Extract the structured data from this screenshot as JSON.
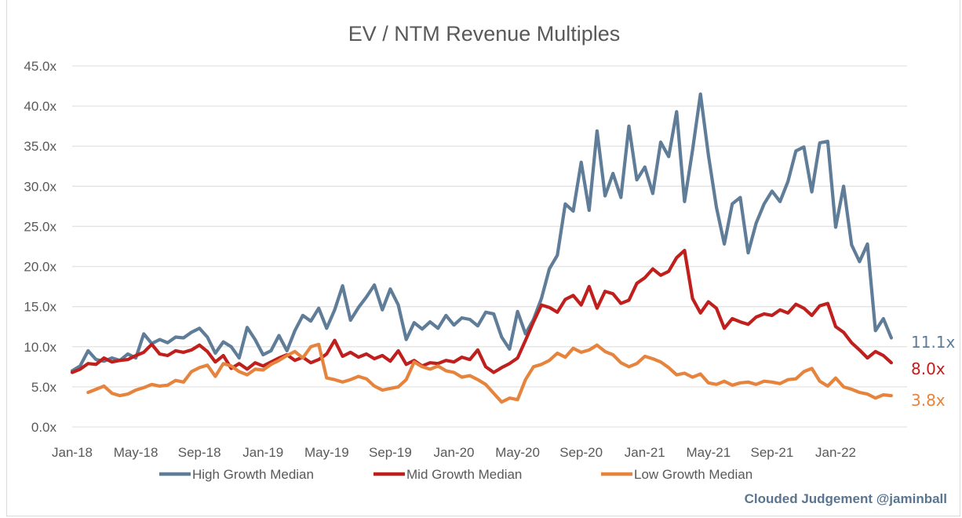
{
  "chart_data": {
    "type": "line",
    "title": "EV / NTM Revenue Multiples",
    "xlabel": "",
    "ylabel": "",
    "ylim": [
      0,
      45
    ],
    "y_ticks": [
      "0.0x",
      "5.0x",
      "10.0x",
      "15.0x",
      "20.0x",
      "25.0x",
      "30.0x",
      "35.0x",
      "40.0x",
      "45.0x"
    ],
    "y_tick_values": [
      0,
      5,
      10,
      15,
      20,
      25,
      30,
      35,
      40,
      45
    ],
    "x_ticks": [
      "Jan-18",
      "May-18",
      "Sep-18",
      "Jan-19",
      "May-19",
      "Sep-19",
      "Jan-20",
      "May-20",
      "Sep-20",
      "Jan-21",
      "May-21",
      "Sep-21",
      "Jan-22"
    ],
    "x_tick_months": [
      0,
      4,
      8,
      12,
      16,
      20,
      24,
      28,
      32,
      36,
      40,
      44,
      48
    ],
    "x_range_months": [
      0,
      51.6
    ],
    "grid": true,
    "legend_position": "bottom",
    "series": [
      {
        "name": "High Growth Median",
        "color": "#5f7d98",
        "end_label": "11.1x",
        "months": [
          0,
          0.5,
          1,
          1.5,
          2,
          2.5,
          3,
          3.5,
          4,
          4.5,
          5,
          5.5,
          6,
          6.5,
          7,
          7.5,
          8,
          8.5,
          9,
          9.5,
          10,
          10.5,
          11,
          11.5,
          12,
          12.5,
          13,
          13.5,
          14,
          14.5,
          15,
          15.5,
          16,
          16.5,
          17,
          17.5,
          18,
          18.5,
          19,
          19.5,
          20,
          20.5,
          21,
          21.5,
          22,
          22.5,
          23,
          23.5,
          24,
          24.5,
          25,
          25.5,
          26,
          26.5,
          27,
          27.5,
          28,
          28.5,
          29,
          29.5,
          30,
          30.5,
          31,
          31.5,
          32,
          32.5,
          33,
          33.5,
          34,
          34.5,
          35,
          35.5,
          36,
          36.5,
          37,
          37.5,
          38,
          38.5,
          39,
          39.5,
          40,
          40.5,
          41,
          41.5,
          42,
          42.5,
          43,
          43.5,
          44,
          44.5,
          45,
          45.5,
          46,
          46.5,
          47,
          47.5,
          48,
          48.5,
          49,
          49.5,
          50,
          50.5,
          51,
          51.5
        ],
        "values": [
          7.0,
          7.6,
          9.5,
          8.4,
          8.2,
          8.6,
          8.3,
          9.1,
          8.6,
          11.6,
          10.4,
          10.9,
          10.5,
          11.2,
          11.1,
          11.8,
          12.3,
          11.2,
          9.2,
          10.6,
          10.0,
          8.6,
          12.4,
          10.9,
          9.0,
          9.5,
          11.4,
          9.5,
          12.0,
          13.9,
          13.2,
          14.8,
          12.3,
          14.6,
          17.6,
          13.3,
          14.9,
          16.2,
          17.7,
          14.6,
          17.2,
          15.2,
          10.9,
          13.0,
          12.2,
          13.1,
          12.3,
          13.9,
          12.7,
          13.6,
          13.4,
          12.6,
          14.3,
          14.1,
          11.2,
          9.7,
          14.4,
          11.6,
          13.4,
          16.0,
          19.7,
          21.4,
          27.8,
          26.9,
          33.0,
          27.0,
          36.9,
          28.8,
          31.6,
          28.6,
          37.5,
          30.8,
          32.4,
          29.1,
          35.5,
          33.7,
          39.3,
          28.1,
          34.5,
          41.5,
          33.9,
          27.4,
          22.8,
          27.8,
          28.6,
          21.7,
          25.4,
          27.8,
          29.4,
          28.1,
          30.6,
          34.4,
          34.9,
          29.3,
          35.4,
          35.6,
          24.9,
          30.0,
          22.7,
          20.6,
          22.8,
          12.0,
          13.5,
          11.1
        ]
      },
      {
        "name": "Mid Growth Median",
        "color": "#c0201d",
        "end_label": "8.0x",
        "months": [
          0,
          0.5,
          1,
          1.5,
          2,
          2.5,
          3,
          3.5,
          4,
          4.5,
          5,
          5.5,
          6,
          6.5,
          7,
          7.5,
          8,
          8.5,
          9,
          9.5,
          10,
          10.5,
          11,
          11.5,
          12,
          12.5,
          13,
          13.5,
          14,
          14.5,
          15,
          15.5,
          16,
          16.5,
          17,
          17.5,
          18,
          18.5,
          19,
          19.5,
          20,
          20.5,
          21,
          21.5,
          22,
          22.5,
          23,
          23.5,
          24,
          24.5,
          25,
          25.5,
          26,
          26.5,
          27,
          27.5,
          28,
          28.5,
          29,
          29.5,
          30,
          30.5,
          31,
          31.5,
          32,
          32.5,
          33,
          33.5,
          34,
          34.5,
          35,
          35.5,
          36,
          36.5,
          37,
          37.5,
          38,
          38.5,
          39,
          39.5,
          40,
          40.5,
          41,
          41.5,
          42,
          42.5,
          43,
          43.5,
          44,
          44.5,
          45,
          45.5,
          46,
          46.5,
          47,
          47.5,
          48,
          48.5,
          49,
          49.5,
          50,
          50.5,
          51,
          51.5
        ],
        "values": [
          6.8,
          7.2,
          7.9,
          7.8,
          8.6,
          8.1,
          8.3,
          8.4,
          8.9,
          9.3,
          10.3,
          9.1,
          8.9,
          9.5,
          9.3,
          9.6,
          10.2,
          9.4,
          8.1,
          8.9,
          7.3,
          7.9,
          7.2,
          8.0,
          7.6,
          8.1,
          8.6,
          9.0,
          8.3,
          8.7,
          8.0,
          8.4,
          9.1,
          10.8,
          8.8,
          9.3,
          8.7,
          9.1,
          8.5,
          8.9,
          8.2,
          9.5,
          7.8,
          8.3,
          7.6,
          8.0,
          7.9,
          8.3,
          8.1,
          8.7,
          8.4,
          9.6,
          7.5,
          6.8,
          7.4,
          7.9,
          8.6,
          10.8,
          13.1,
          15.2,
          14.9,
          14.3,
          15.9,
          16.4,
          15.2,
          17.5,
          14.8,
          16.9,
          16.6,
          15.4,
          15.8,
          17.9,
          18.6,
          19.7,
          18.9,
          19.4,
          21.1,
          22.0,
          16.0,
          14.2,
          15.6,
          14.8,
          12.3,
          13.5,
          13.1,
          12.8,
          13.7,
          14.1,
          13.9,
          14.6,
          14.2,
          15.3,
          14.8,
          13.9,
          15.1,
          15.4,
          12.5,
          11.8,
          10.5,
          9.6,
          8.6,
          9.4,
          8.9,
          8.0
        ]
      },
      {
        "name": "Low Growth Median",
        "color": "#e6843d",
        "end_label": "3.8x",
        "months": [
          1,
          1.5,
          2,
          2.5,
          3,
          3.5,
          4,
          4.5,
          5,
          5.5,
          6,
          6.5,
          7,
          7.5,
          8,
          8.5,
          9,
          9.5,
          10,
          10.5,
          11,
          11.5,
          12,
          12.5,
          13,
          13.5,
          14,
          14.5,
          15,
          15.5,
          16,
          16.5,
          17,
          17.5,
          18,
          18.5,
          19,
          19.5,
          20,
          20.5,
          21,
          21.5,
          22,
          22.5,
          23,
          23.5,
          24,
          24.5,
          25,
          25.5,
          26,
          26.5,
          27,
          27.5,
          28,
          28.5,
          29,
          29.5,
          30,
          30.5,
          31,
          31.5,
          32,
          32.5,
          33,
          33.5,
          34,
          34.5,
          35,
          35.5,
          36,
          36.5,
          37,
          37.5,
          38,
          38.5,
          39,
          39.5,
          40,
          40.5,
          41,
          41.5,
          42,
          42.5,
          43,
          43.5,
          44,
          44.5,
          45,
          45.5,
          46,
          46.5,
          47,
          47.5,
          48,
          48.5,
          49,
          49.5,
          50,
          50.5,
          51,
          51.5
        ],
        "values": [
          4.3,
          4.7,
          5.1,
          4.2,
          3.9,
          4.1,
          4.6,
          4.9,
          5.3,
          5.1,
          5.2,
          5.8,
          5.6,
          6.9,
          7.4,
          7.7,
          6.3,
          7.9,
          7.6,
          6.9,
          6.5,
          7.2,
          7.1,
          7.8,
          8.3,
          8.9,
          9.4,
          8.6,
          10.0,
          10.3,
          6.1,
          5.9,
          5.6,
          5.9,
          6.3,
          6.0,
          5.1,
          4.6,
          4.8,
          5.0,
          5.9,
          8.1,
          7.5,
          7.2,
          7.6,
          7.0,
          6.8,
          6.2,
          6.4,
          5.9,
          5.3,
          4.2,
          3.1,
          3.6,
          3.4,
          5.9,
          7.5,
          7.8,
          8.3,
          9.2,
          8.7,
          9.8,
          9.3,
          9.6,
          10.2,
          9.4,
          9.0,
          8.0,
          7.5,
          7.9,
          8.8,
          8.5,
          8.1,
          7.4,
          6.5,
          6.7,
          6.2,
          6.6,
          5.5,
          5.3,
          5.7,
          5.2,
          5.5,
          5.6,
          5.3,
          5.7,
          5.6,
          5.4,
          5.9,
          6.0,
          6.9,
          7.3,
          5.7,
          5.1,
          6.1,
          5.0,
          4.7,
          4.3,
          4.1,
          3.6,
          4.0,
          3.9,
          4.0,
          3.8
        ]
      }
    ],
    "credit": "Clouded Judgement @jaminball"
  }
}
